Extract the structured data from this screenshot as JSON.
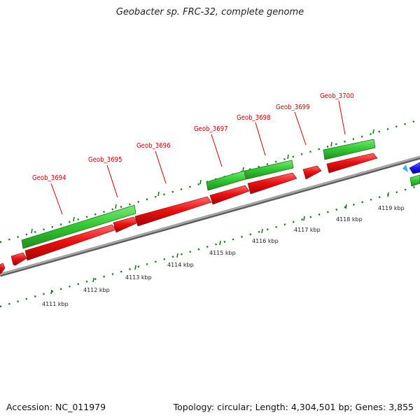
{
  "header": {
    "title": "Geobacter sp. FRC-32, complete genome"
  },
  "footer": {
    "accession": "Accession: NC_011979",
    "summary": "Topology: circular; Length: 4,304,501 bp; Genes: 3,855"
  },
  "colors": {
    "label": "#cc0000",
    "forward_gene": "#33cc33",
    "reverse_gene": "#ee1111",
    "other_gene": "#1a1aee",
    "backbone": "#888888",
    "ticks": "#1a7a1a"
  },
  "genes": [
    {
      "name": "Geob_3694"
    },
    {
      "name": "Geob_3695"
    },
    {
      "name": "Geob_3696"
    },
    {
      "name": "Geob_3697"
    },
    {
      "name": "Geob_3698"
    },
    {
      "name": "Geob_3699"
    },
    {
      "name": "Geob_3700"
    }
  ],
  "ticks": [
    {
      "label": "4111 kbp"
    },
    {
      "label": "4112 kbp"
    },
    {
      "label": "4113 kbp"
    },
    {
      "label": "4114 kbp"
    },
    {
      "label": "4115 kbp"
    },
    {
      "label": "4116 kbp"
    },
    {
      "label": "4117 kbp"
    },
    {
      "label": "4118 kbp"
    },
    {
      "label": "4119 kbp"
    }
  ]
}
